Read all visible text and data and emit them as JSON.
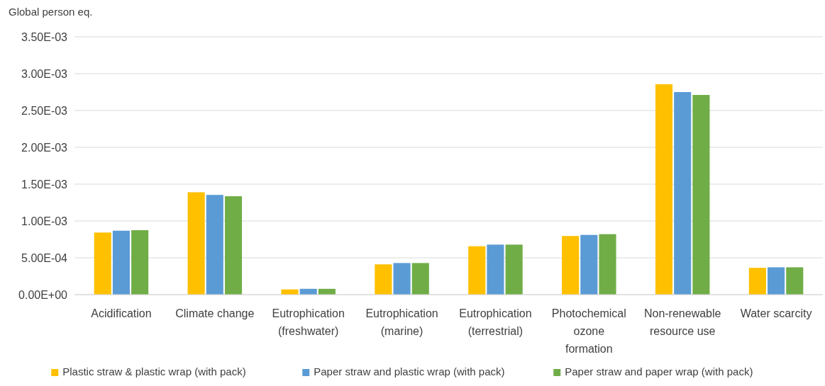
{
  "chart_data": {
    "type": "bar",
    "ylabel": "Global person eq.",
    "categories": [
      "Acidification",
      "Climate change",
      "Eutrophication (freshwater)",
      "Eutrophication (marine)",
      "Eutrophication (terrestrial)",
      "Photochemical ozone formation",
      "Non-renewable resource use",
      "Water scarcity"
    ],
    "series": [
      {
        "name": "Plastic straw & plastic wrap (with pack)",
        "color": "#ffc000",
        "values": [
          0.000843,
          0.00139,
          7.1e-05,
          0.000411,
          0.000657,
          0.000796,
          0.002857,
          0.000364
        ]
      },
      {
        "name": "Paper straw and plastic wrap (with pack)",
        "color": "#5b9bd5",
        "values": [
          0.000868,
          0.001354,
          7.9e-05,
          0.000429,
          0.000679,
          0.000811,
          0.00275,
          0.000371
        ]
      },
      {
        "name": "Paper straw and paper wrap (with pack)",
        "color": "#70ad47",
        "values": [
          0.000875,
          0.001336,
          7.9e-05,
          0.000429,
          0.000679,
          0.000821,
          0.002711,
          0.000371
        ]
      }
    ],
    "ylim": [
      0,
      0.0035
    ],
    "yticks": [
      {
        "value": 0,
        "label": "0.00E+00"
      },
      {
        "value": 0.0005,
        "label": "5.00E-04"
      },
      {
        "value": 0.001,
        "label": "1.00E-03"
      },
      {
        "value": 0.0015,
        "label": "1.50E-03"
      },
      {
        "value": 0.002,
        "label": "2.00E-03"
      },
      {
        "value": 0.0025,
        "label": "2.50E-03"
      },
      {
        "value": 0.003,
        "label": "3.00E-03"
      },
      {
        "value": 0.0035,
        "label": "3.50E-03"
      }
    ],
    "grid": "y",
    "legend": "bottom"
  }
}
